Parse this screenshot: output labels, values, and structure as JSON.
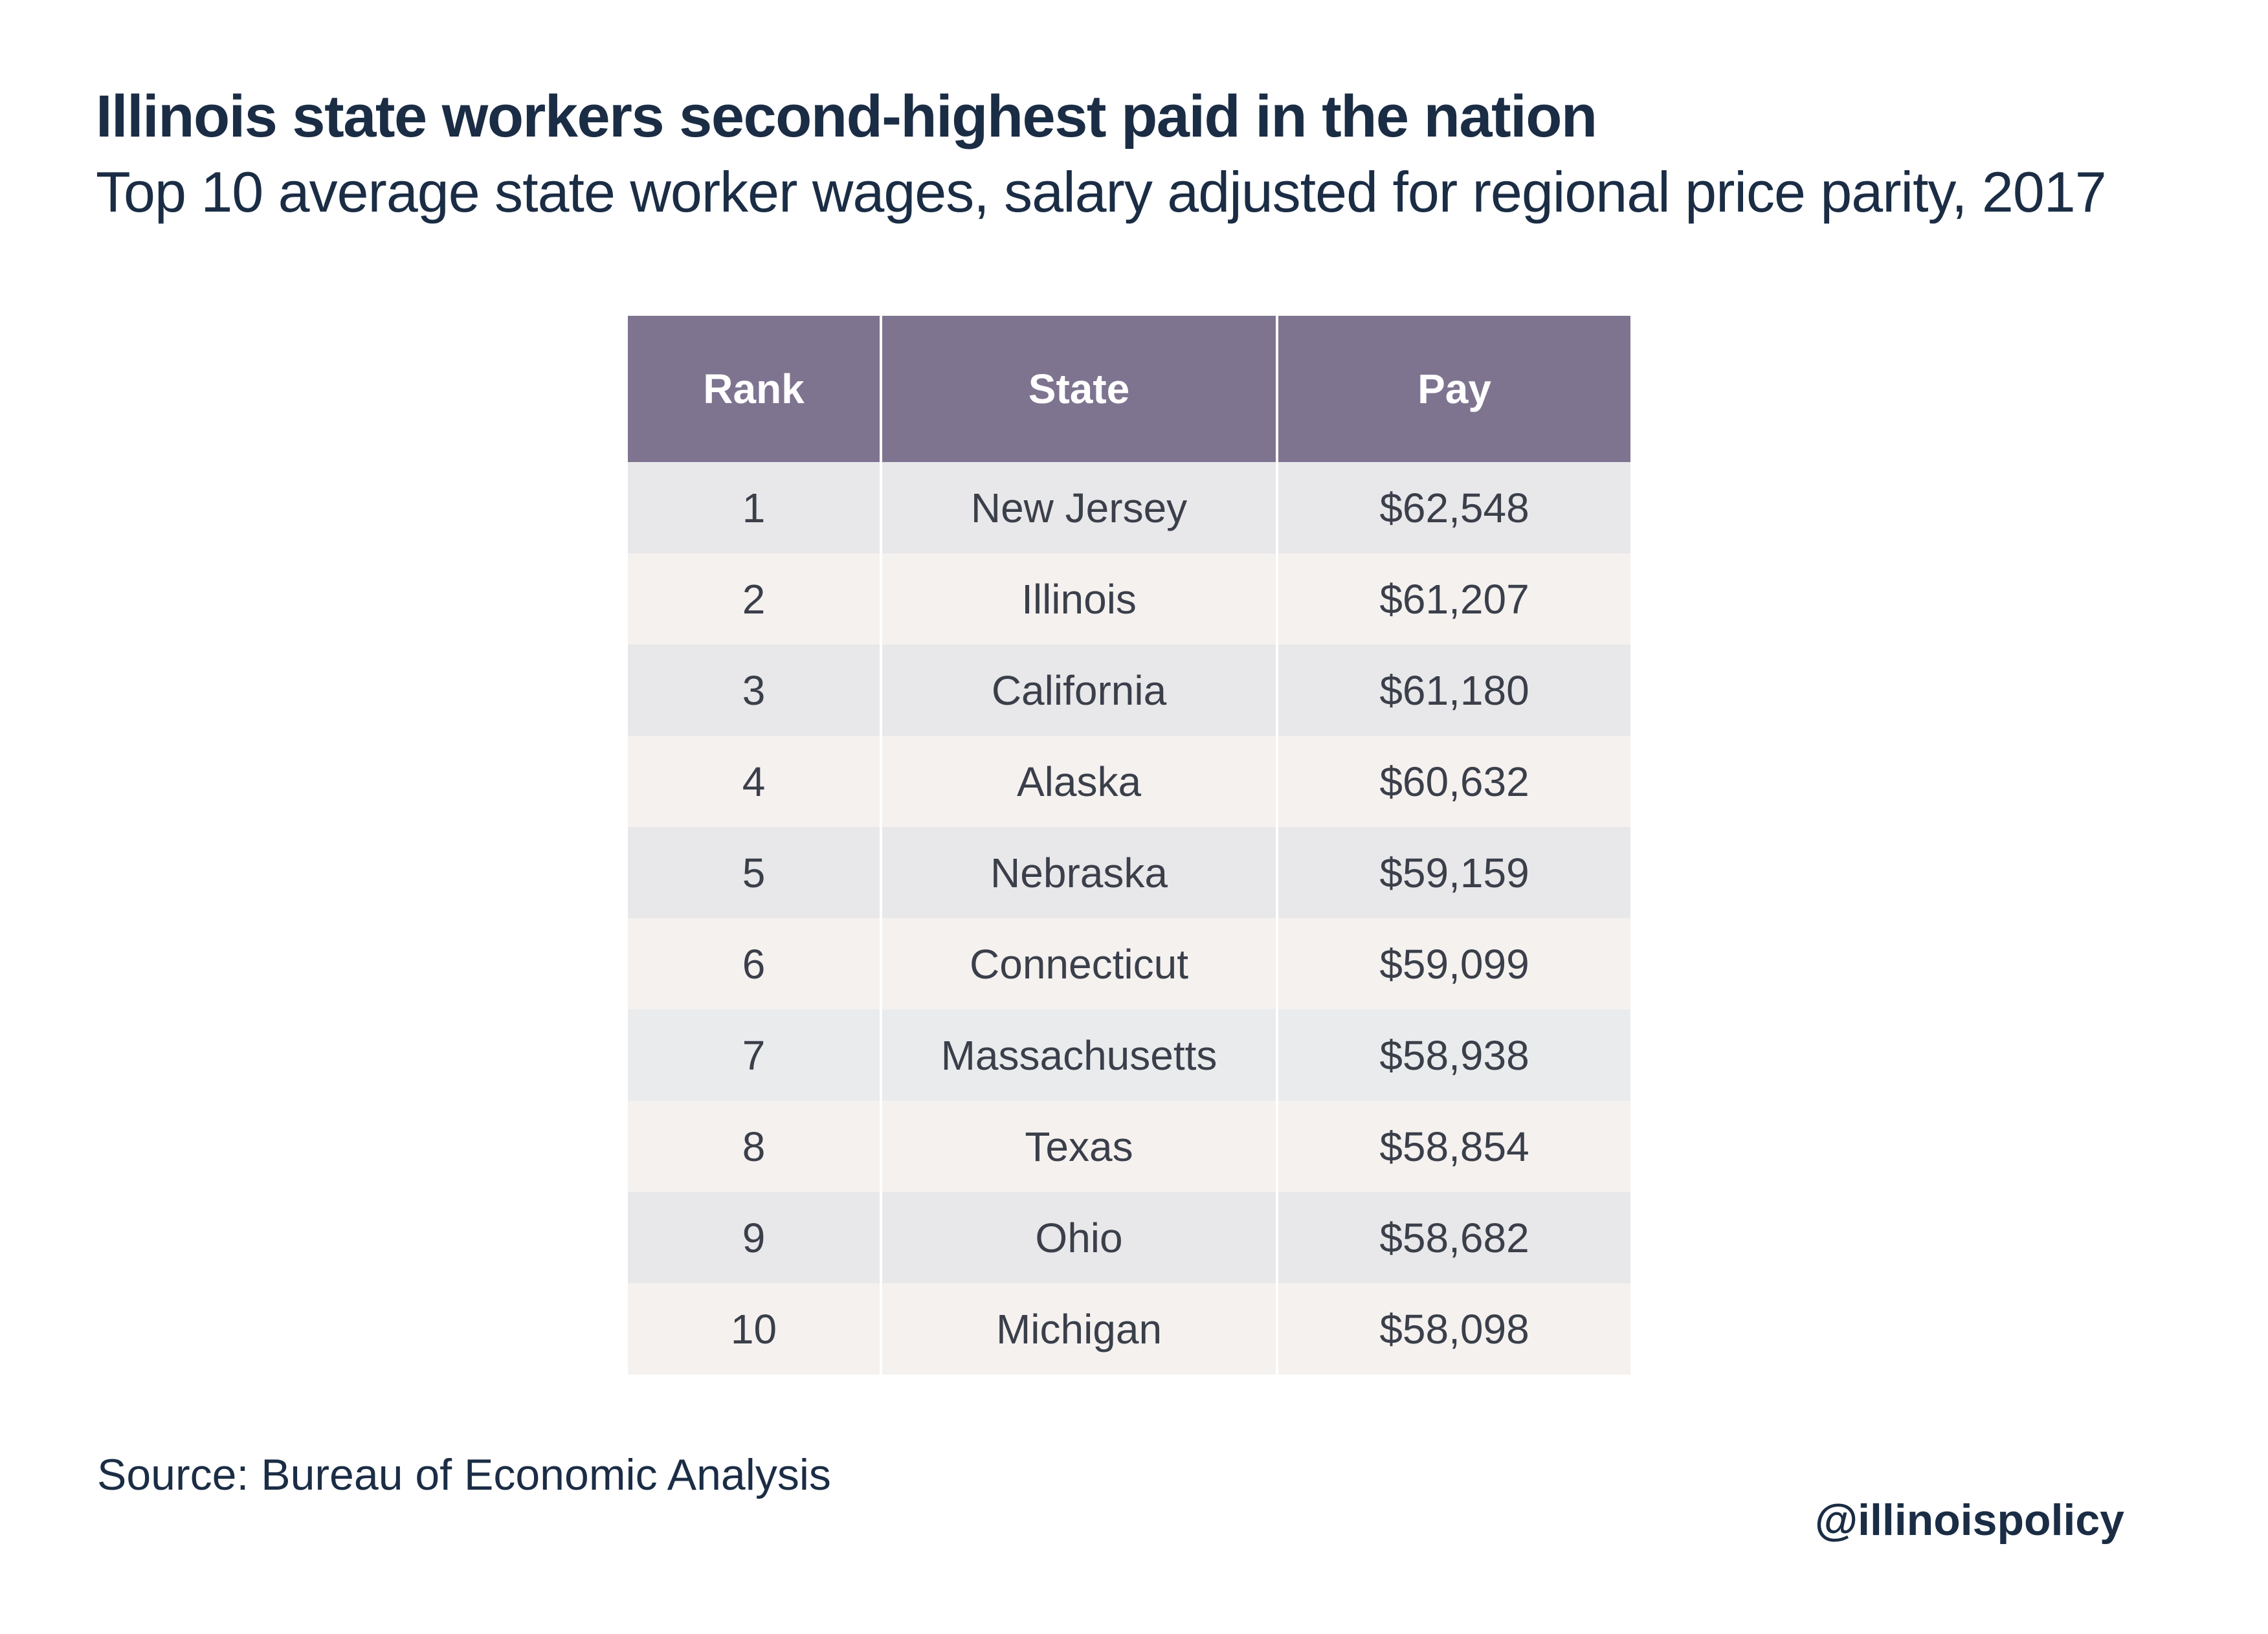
{
  "header": {
    "title": "Illinois state workers second-highest paid in the nation",
    "subtitle": "Top 10 average state worker wages, salary adjusted for regional price parity, 2017"
  },
  "chart_data": {
    "type": "table",
    "title": "Illinois state workers second-highest paid in the nation",
    "subtitle": "Top 10 average state worker wages, salary adjusted for regional price parity, 2017",
    "columns": [
      "Rank",
      "State",
      "Pay"
    ],
    "rows": [
      [
        "1",
        "New Jersey",
        "$62,548"
      ],
      [
        "2",
        "Illinois",
        "$61,207"
      ],
      [
        "3",
        "California",
        "$61,180"
      ],
      [
        "4",
        "Alaska",
        "$60,632"
      ],
      [
        "5",
        "Nebraska",
        "$59,159"
      ],
      [
        "6",
        "Connecticut",
        "$59,099"
      ],
      [
        "7",
        "Massachusetts",
        "$58,938"
      ],
      [
        "8",
        "Texas",
        "$58,854"
      ],
      [
        "9",
        "Ohio",
        "$58,682"
      ],
      [
        "10",
        "Michigan",
        "$58,098"
      ]
    ],
    "values": [
      62548,
      61207,
      61180,
      60632,
      59159,
      59099,
      58938,
      58854,
      58682,
      58098
    ]
  },
  "footer": {
    "source": "Source: Bureau of Economic Analysis",
    "handle": "@illinoispolicy"
  },
  "colors": {
    "header_bg": "#7e7490",
    "row_odd": "#e8e7e9",
    "row_even": "#f4f1ef",
    "text_dark": "#1b2d45"
  }
}
